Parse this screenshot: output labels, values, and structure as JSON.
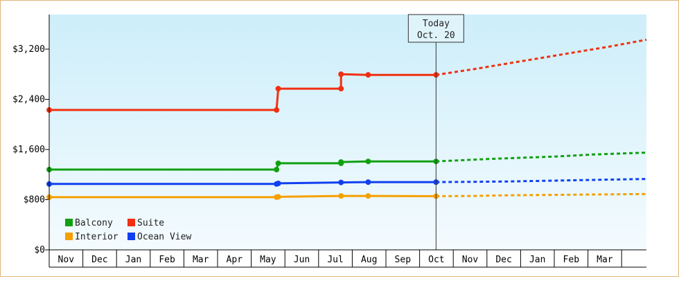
{
  "chart_data": {
    "type": "line",
    "title": "",
    "xlabel": "",
    "ylabel": "",
    "ylim": [
      0,
      3200
    ],
    "y_ticks": [
      {
        "value": 0,
        "label": "$0"
      },
      {
        "value": 800,
        "label": "$800"
      },
      {
        "value": 1600,
        "label": "$1,600"
      },
      {
        "value": 2400,
        "label": "$2,400"
      },
      {
        "value": 3200,
        "label": "$3,200"
      }
    ],
    "months": [
      "Nov",
      "Dec",
      "Jan",
      "Feb",
      "Mar",
      "Apr",
      "May",
      "Jun",
      "Jul",
      "Aug",
      "Sep",
      "Oct",
      "Nov",
      "Dec",
      "Jan",
      "Feb",
      "Mar"
    ],
    "today": {
      "label_line1": "Today",
      "label_line2": "Oct. 20",
      "x": 11.4
    },
    "x_range": [
      0,
      17.6
    ],
    "grid": false,
    "legend_position": "bottom-left",
    "series": [
      {
        "name": "Balcony",
        "color": "#10a010",
        "actual": [
          [
            0,
            1280
          ],
          [
            6.7,
            1280
          ],
          [
            6.75,
            1380
          ],
          [
            8.6,
            1380
          ],
          [
            8.6,
            1400
          ],
          [
            9.4,
            1410
          ],
          [
            11.4,
            1410
          ]
        ],
        "markers": [
          [
            0,
            1280
          ],
          [
            6.7,
            1280
          ],
          [
            6.75,
            1380
          ],
          [
            8.6,
            1380
          ],
          [
            8.6,
            1400
          ],
          [
            9.4,
            1410
          ],
          [
            11.4,
            1410
          ]
        ],
        "forecast": [
          [
            11.4,
            1410
          ],
          [
            12.2,
            1430
          ],
          [
            13.0,
            1450
          ],
          [
            14.0,
            1470
          ],
          [
            15.0,
            1490
          ],
          [
            16.0,
            1520
          ],
          [
            17.6,
            1550
          ]
        ]
      },
      {
        "name": "Suite",
        "color": "#f03010",
        "actual": [
          [
            0,
            2230
          ],
          [
            6.7,
            2230
          ],
          [
            6.75,
            2570
          ],
          [
            8.6,
            2570
          ],
          [
            8.6,
            2800
          ],
          [
            9.4,
            2790
          ],
          [
            11.4,
            2790
          ]
        ],
        "markers": [
          [
            0,
            2230
          ],
          [
            6.7,
            2230
          ],
          [
            6.75,
            2570
          ],
          [
            8.6,
            2570
          ],
          [
            8.6,
            2800
          ],
          [
            9.4,
            2790
          ],
          [
            11.4,
            2790
          ]
        ],
        "forecast": [
          [
            11.4,
            2790
          ],
          [
            12.5,
            2880
          ],
          [
            13.5,
            2970
          ],
          [
            14.5,
            3060
          ],
          [
            15.5,
            3150
          ],
          [
            16.5,
            3240
          ],
          [
            17.6,
            3350
          ]
        ]
      },
      {
        "name": "Interior",
        "color": "#f5a000",
        "actual": [
          [
            0,
            840
          ],
          [
            6.7,
            840
          ],
          [
            6.75,
            845
          ],
          [
            8.6,
            860
          ],
          [
            9.4,
            860
          ],
          [
            11.4,
            855
          ]
        ],
        "markers": [
          [
            0,
            840
          ],
          [
            6.7,
            840
          ],
          [
            6.75,
            845
          ],
          [
            8.6,
            860
          ],
          [
            9.4,
            860
          ],
          [
            11.4,
            855
          ]
        ],
        "forecast": [
          [
            11.4,
            855
          ],
          [
            12.5,
            860
          ],
          [
            13.5,
            870
          ],
          [
            14.5,
            875
          ],
          [
            15.5,
            880
          ],
          [
            16.5,
            885
          ],
          [
            17.6,
            890
          ]
        ]
      },
      {
        "name": "Ocean View",
        "color": "#1040f0",
        "actual": [
          [
            0,
            1050
          ],
          [
            6.7,
            1050
          ],
          [
            6.75,
            1060
          ],
          [
            8.6,
            1075
          ],
          [
            9.4,
            1080
          ],
          [
            11.4,
            1080
          ]
        ],
        "markers": [
          [
            0,
            1050
          ],
          [
            6.7,
            1050
          ],
          [
            6.75,
            1060
          ],
          [
            8.6,
            1075
          ],
          [
            9.4,
            1080
          ],
          [
            11.4,
            1080
          ]
        ],
        "forecast": [
          [
            11.4,
            1080
          ],
          [
            12.5,
            1085
          ],
          [
            13.5,
            1090
          ],
          [
            14.5,
            1100
          ],
          [
            15.5,
            1110
          ],
          [
            16.5,
            1120
          ],
          [
            17.6,
            1130
          ]
        ]
      }
    ]
  }
}
